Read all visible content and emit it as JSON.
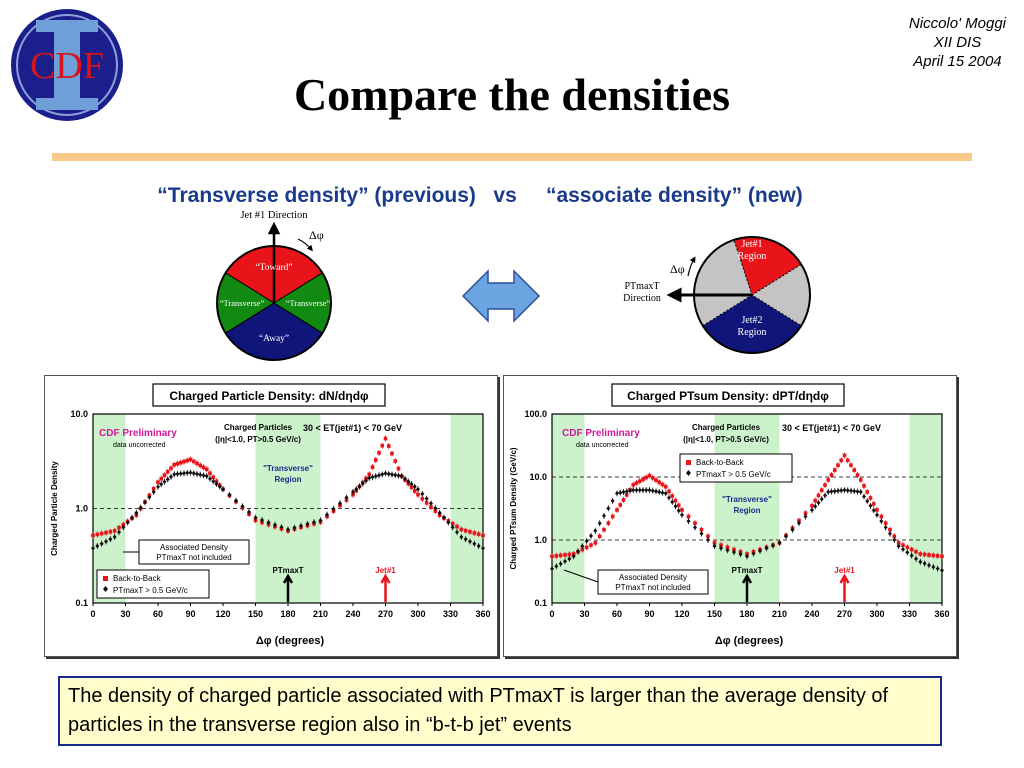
{
  "header": {
    "title": "Compare the densities",
    "author_lines": [
      "Niccolo' Moggi",
      "XII DIS",
      "April 15 2004"
    ],
    "logo_text": "CDF"
  },
  "subtitle": "“Transverse density” (previous)   vs     “associate density” (new)",
  "left_diagram": {
    "direction_label": "Jet #1 Direction",
    "dphi_label": "Δφ",
    "regions": [
      "“Toward”",
      "“Transverse”",
      "“Transverse”",
      "“Away”"
    ]
  },
  "right_diagram": {
    "direction_label_lines": [
      "PTmaxT",
      "Direction"
    ],
    "dphi_label": "Δφ",
    "jet1_lines": [
      "Jet#1",
      "Region"
    ],
    "jet2_lines": [
      "Jet#2",
      "Region"
    ]
  },
  "colors": {
    "red": "#e8141a",
    "green": "#128a12",
    "navy": "#10157a",
    "gray": "#c4c4c4",
    "arrow_blue": "#6ba4e0",
    "band": "#ccf2cc"
  },
  "chart_data": [
    {
      "type": "scatter",
      "title": "Charged Particle Density: dN/dηdφ",
      "ylabel": "Charged Particle Density",
      "xlabel": "Δφ  (degrees)",
      "log_y": true,
      "xlim": [
        0,
        360
      ],
      "ylim": [
        0.1,
        10.0
      ],
      "x_ticks": [
        "0",
        "30",
        "60",
        "90",
        "120",
        "150",
        "180",
        "210",
        "240",
        "270",
        "300",
        "330",
        "360"
      ],
      "y_ticks": [
        "10.0",
        "1.0",
        "0.1"
      ],
      "annotations": {
        "preliminary": "CDF Preliminary",
        "uncorrected": "data uncorrected",
        "cuts_line1": "Charged Particles",
        "cuts_line2": "(|η|<1.0, PT>0.5 GeV/c)",
        "et_range": "30 < ET(jet#1) < 70 GeV",
        "region_line1": "\"Transverse\"",
        "region_line2": "Region",
        "assoc_line1": "Associated Density",
        "assoc_line2": "PTmaxT not included",
        "ptmax_label": "PTmaxT",
        "jet_label": "Jet#1"
      },
      "legend": [
        "Back-to-Back",
        "PTmaxT > 0.5 GeV/c"
      ],
      "legend_placement": "bottom-left",
      "series": [
        {
          "name": "Back-to-Back",
          "color": "#e8141a",
          "x": [
            0,
            20,
            40,
            60,
            75,
            90,
            105,
            120,
            150,
            180,
            210,
            240,
            255,
            270,
            285,
            300,
            320,
            340,
            360
          ],
          "values": [
            0.52,
            0.58,
            0.85,
            1.9,
            2.9,
            3.3,
            2.6,
            1.6,
            0.75,
            0.58,
            0.72,
            1.4,
            2.3,
            5.5,
            2.2,
            1.4,
            0.85,
            0.6,
            0.52
          ]
        },
        {
          "name": "PTmaxT > 0.5 GeV/c",
          "color": "#111111",
          "x": [
            0,
            20,
            40,
            60,
            75,
            90,
            105,
            120,
            150,
            180,
            210,
            240,
            255,
            270,
            285,
            300,
            320,
            340,
            360
          ],
          "values": [
            0.38,
            0.5,
            0.9,
            1.7,
            2.3,
            2.4,
            2.2,
            1.6,
            0.8,
            0.6,
            0.75,
            1.5,
            2.1,
            2.35,
            2.2,
            1.6,
            0.9,
            0.5,
            0.38
          ]
        }
      ]
    },
    {
      "type": "scatter",
      "title": "Charged PTsum Density: dPT/dηdφ",
      "ylabel": "Charged PTsum Density (GeV/c)",
      "xlabel": "Δφ  (degrees)",
      "log_y": true,
      "xlim": [
        0,
        360
      ],
      "ylim": [
        0.1,
        100.0
      ],
      "x_ticks": [
        "0",
        "30",
        "60",
        "90",
        "120",
        "150",
        "180",
        "210",
        "240",
        "270",
        "300",
        "330",
        "360"
      ],
      "y_ticks": [
        "100.0",
        "10.0",
        "1.0",
        "0.1"
      ],
      "annotations": {
        "preliminary": "CDF Preliminary",
        "uncorrected": "data uncorrected",
        "cuts_line1": "Charged Particles",
        "cuts_line2": "(|η|<1.0, PT>0.5 GeV/c)",
        "et_range": "30 < ET(jet#1) < 70 GeV",
        "region_line1": "\"Transverse\"",
        "region_line2": "Region",
        "assoc_line1": "Associated Density",
        "assoc_line2": "PTmaxT not included",
        "ptmax_label": "PTmaxT",
        "jet_label": "Jet#1"
      },
      "legend": [
        "Back-to-Back",
        "PTmaxT > 0.5 GeV/c"
      ],
      "legend_placement": "top-left",
      "series": [
        {
          "name": "Back-to-Back",
          "color": "#e8141a",
          "x": [
            0,
            20,
            40,
            60,
            75,
            90,
            105,
            120,
            150,
            180,
            210,
            240,
            255,
            270,
            285,
            300,
            320,
            340,
            360
          ],
          "values": [
            0.55,
            0.6,
            0.9,
            3.0,
            7.5,
            10.5,
            7.0,
            3.0,
            0.9,
            0.6,
            0.9,
            3.5,
            9.0,
            22.0,
            9.0,
            3.0,
            0.9,
            0.6,
            0.55
          ]
        },
        {
          "name": "PTmaxT > 0.5 GeV/c",
          "color": "#111111",
          "x": [
            0,
            20,
            40,
            60,
            75,
            90,
            105,
            120,
            150,
            180,
            210,
            240,
            255,
            270,
            285,
            300,
            320,
            340,
            360
          ],
          "values": [
            0.35,
            0.55,
            1.4,
            5.5,
            6.2,
            6.2,
            5.5,
            2.5,
            0.8,
            0.55,
            0.9,
            3.0,
            5.8,
            6.2,
            5.8,
            2.5,
            0.8,
            0.45,
            0.33
          ]
        }
      ]
    }
  ],
  "caption": "The density of charged particle associated with PTmaxT is larger  than the average density of particles in the transverse region also in “b-t-b jet” events"
}
